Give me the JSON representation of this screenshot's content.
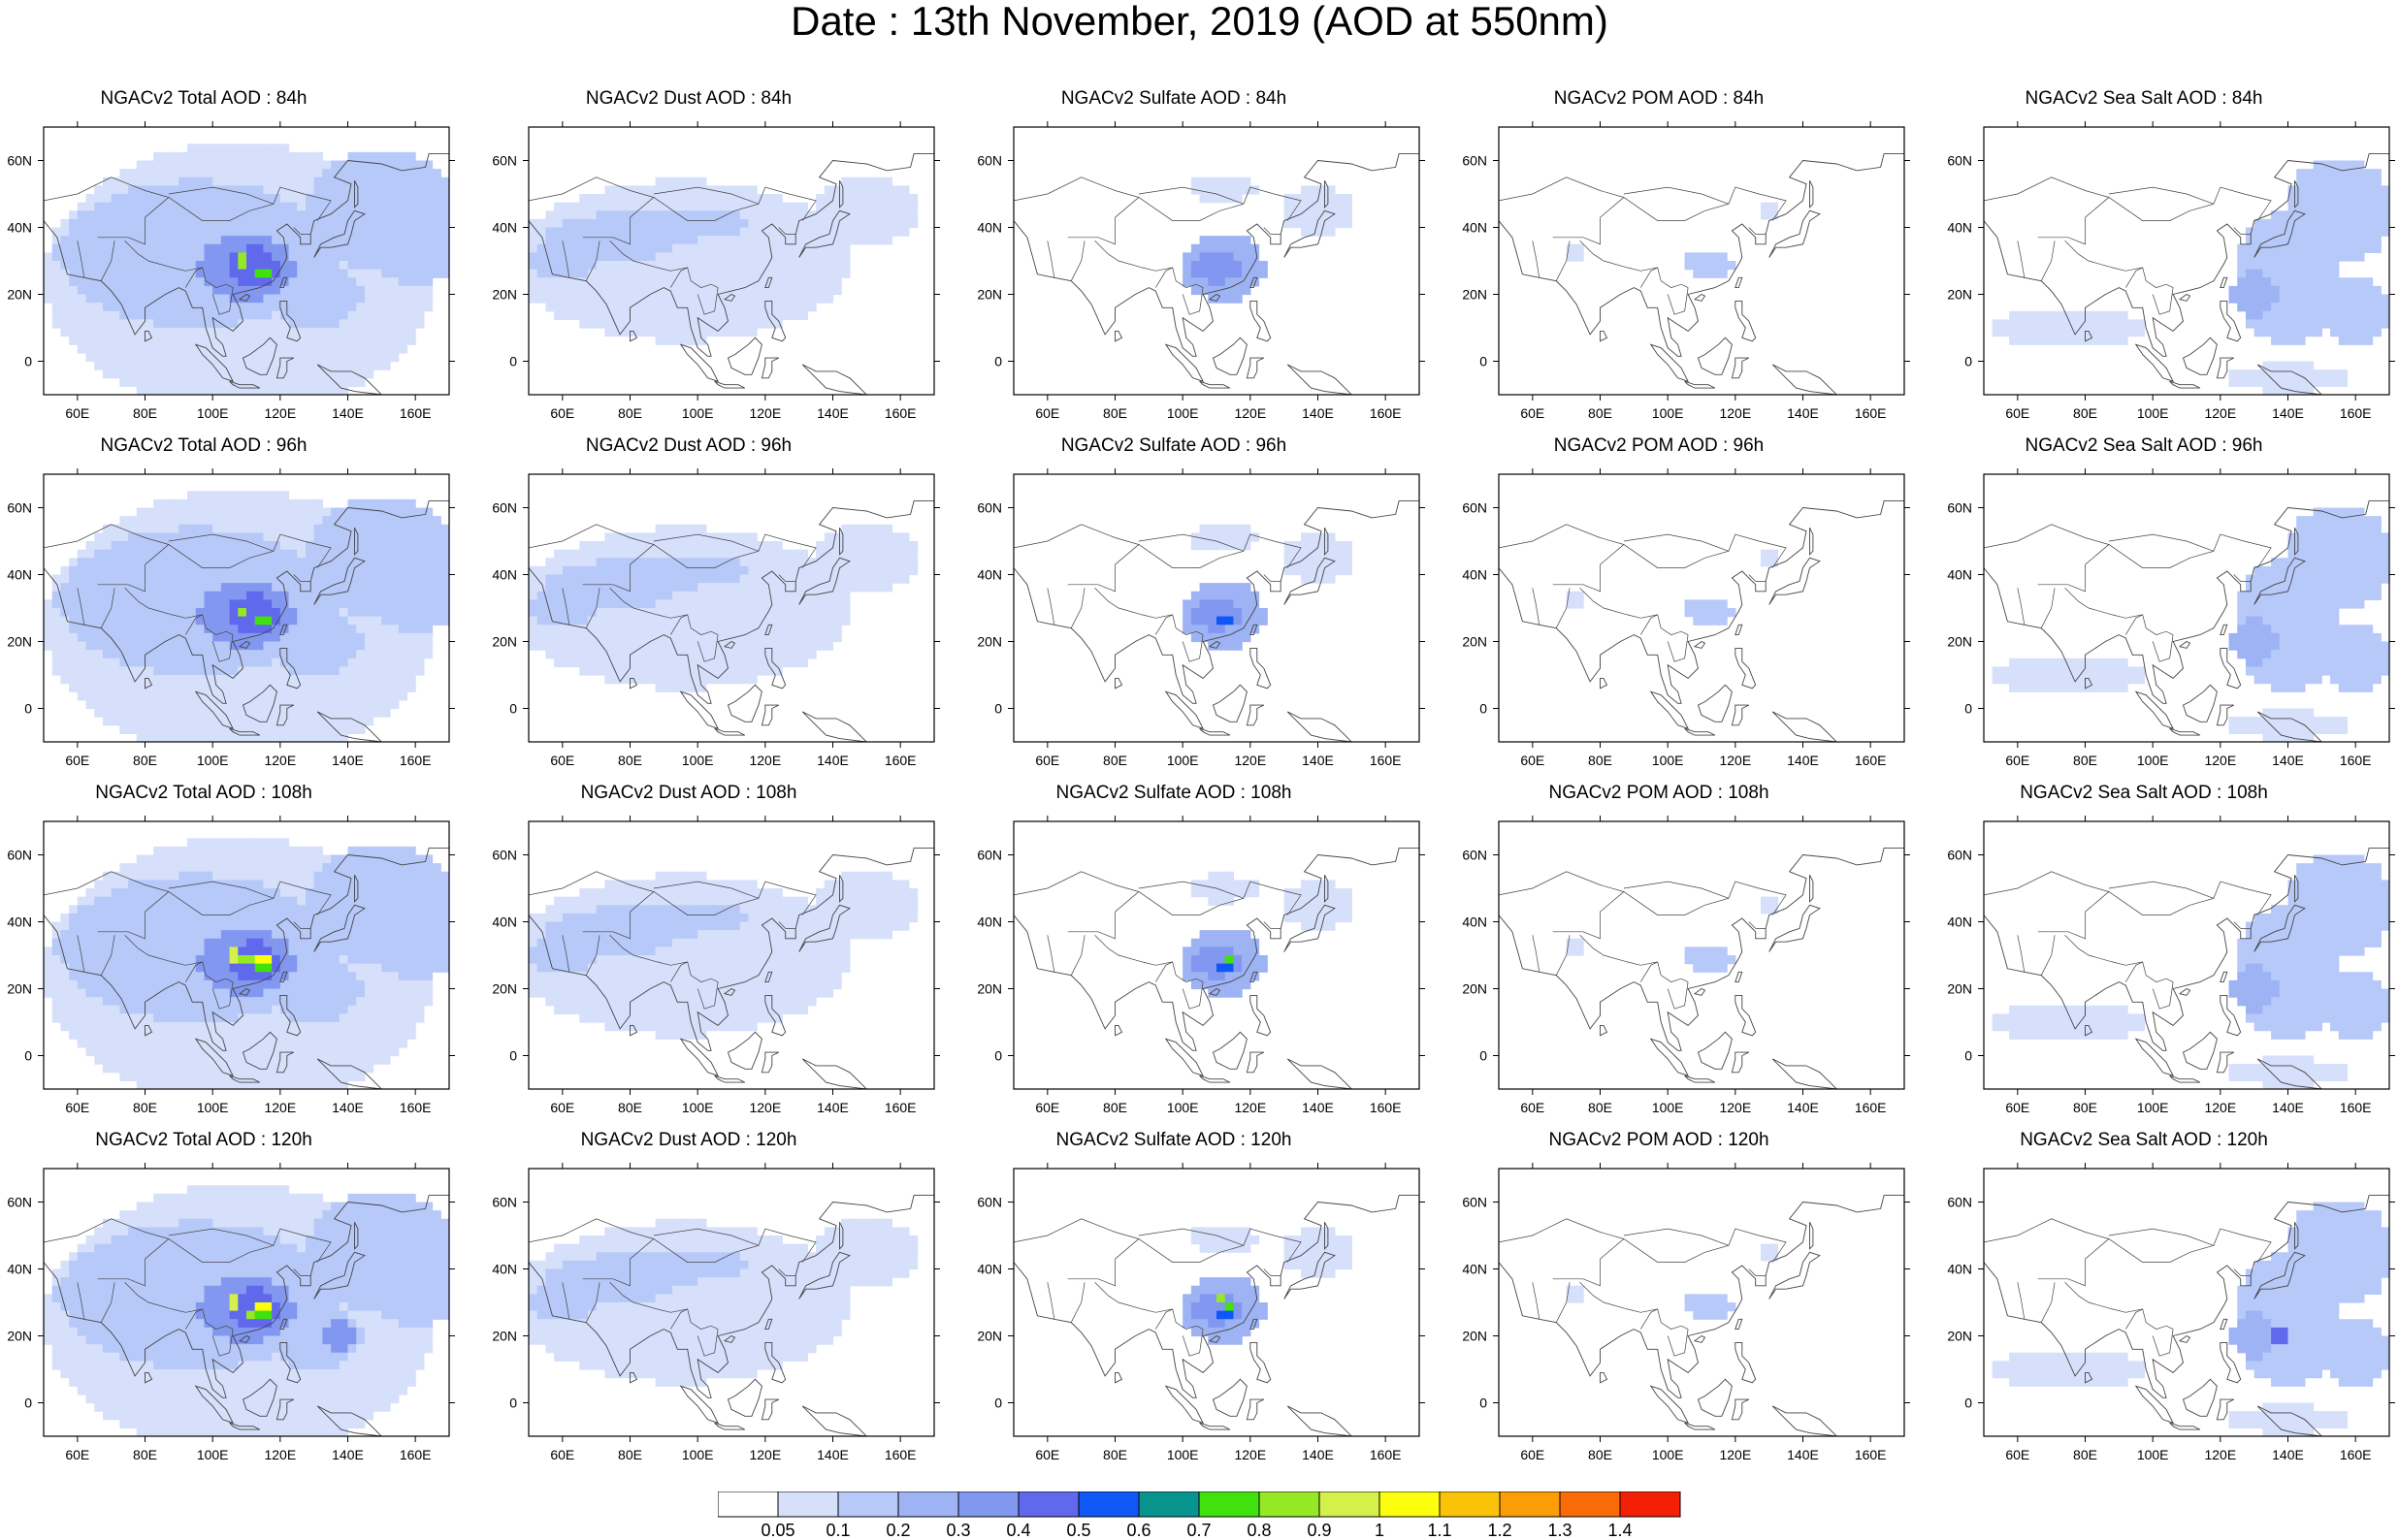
{
  "title": "Date : 13th November, 2019 (AOD at 550nm)",
  "map": {
    "lon_ticks": [
      "60E",
      "80E",
      "100E",
      "120E",
      "140E",
      "160E"
    ],
    "lat_ticks": [
      "60N",
      "40N",
      "20N",
      "0"
    ],
    "extent": {
      "lon": [
        50,
        170
      ],
      "lat": [
        -10,
        70
      ]
    }
  },
  "panels": [
    {
      "title": "NGACv2 Total AOD : 84h",
      "species": "total",
      "hour": 84
    },
    {
      "title": "NGACv2 Dust AOD : 84h",
      "species": "dust",
      "hour": 84
    },
    {
      "title": "NGACv2 Sulfate AOD : 84h",
      "species": "sulfate",
      "hour": 84
    },
    {
      "title": "NGACv2 POM AOD : 84h",
      "species": "pom",
      "hour": 84
    },
    {
      "title": "NGACv2 Sea Salt AOD : 84h",
      "species": "seasalt",
      "hour": 84
    },
    {
      "title": "NGACv2 Total AOD : 96h",
      "species": "total",
      "hour": 96
    },
    {
      "title": "NGACv2 Dust AOD : 96h",
      "species": "dust",
      "hour": 96
    },
    {
      "title": "NGACv2 Sulfate AOD : 96h",
      "species": "sulfate",
      "hour": 96
    },
    {
      "title": "NGACv2 POM AOD : 96h",
      "species": "pom",
      "hour": 96
    },
    {
      "title": "NGACv2 Sea Salt AOD : 96h",
      "species": "seasalt",
      "hour": 96
    },
    {
      "title": "NGACv2 Total AOD : 108h",
      "species": "total",
      "hour": 108
    },
    {
      "title": "NGACv2 Dust AOD : 108h",
      "species": "dust",
      "hour": 108
    },
    {
      "title": "NGACv2 Sulfate AOD : 108h",
      "species": "sulfate",
      "hour": 108
    },
    {
      "title": "NGACv2 POM AOD : 108h",
      "species": "pom",
      "hour": 108
    },
    {
      "title": "NGACv2 Sea Salt AOD : 108h",
      "species": "seasalt",
      "hour": 108
    },
    {
      "title": "NGACv2 Total AOD : 120h",
      "species": "total",
      "hour": 120
    },
    {
      "title": "NGACv2 Dust AOD : 120h",
      "species": "dust",
      "hour": 120
    },
    {
      "title": "NGACv2 Sulfate AOD : 120h",
      "species": "sulfate",
      "hour": 120
    },
    {
      "title": "NGACv2 POM AOD : 120h",
      "species": "pom",
      "hour": 120
    },
    {
      "title": "NGACv2 Sea Salt  AOD : 120h",
      "species": "seasalt",
      "hour": 120
    }
  ],
  "colorbar": {
    "labels": [
      "0.05",
      "0.1",
      "0.2",
      "0.3",
      "0.4",
      "0.5",
      "0.6",
      "0.7",
      "0.8",
      "0.9",
      "1",
      "1.1",
      "1.2",
      "1.3",
      "1.4"
    ],
    "colors": [
      "#ffffff",
      "#d6e0fb",
      "#b7c9f8",
      "#9db3f4",
      "#8297f0",
      "#6069ec",
      "#0f57f7",
      "#08938f",
      "#40e10c",
      "#95e824",
      "#d4f04a",
      "#fcfe0e",
      "#fbc308",
      "#fb9d05",
      "#f86b06",
      "#f42005"
    ]
  },
  "style": {
    "coast": "#444444",
    "frame": "#000000"
  }
}
